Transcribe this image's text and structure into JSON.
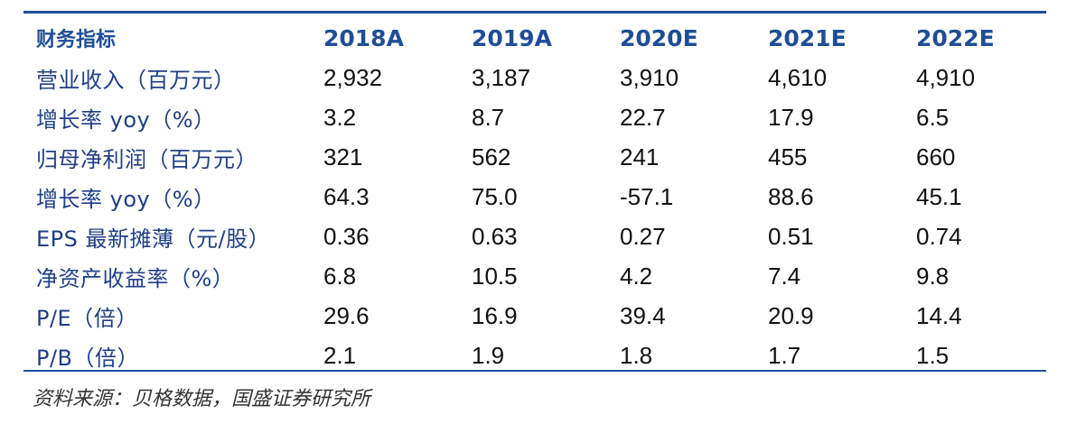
{
  "table": {
    "header": [
      "财务指标",
      "2018A",
      "2019A",
      "2020E",
      "2021E",
      "2022E"
    ],
    "rows": [
      {
        "label": "营业收入（百万元）",
        "values": [
          "2,932",
          "3,187",
          "3,910",
          "4,610",
          "4,910"
        ]
      },
      {
        "label": "增长率 yoy（%）",
        "values": [
          "3.2",
          "8.7",
          "22.7",
          "17.9",
          "6.5"
        ]
      },
      {
        "label": "归母净利润（百万元）",
        "values": [
          "321",
          "562",
          "241",
          "455",
          "660"
        ]
      },
      {
        "label": "增长率 yoy（%）",
        "values": [
          "64.3",
          "75.0",
          "-57.1",
          "88.6",
          "45.1"
        ]
      },
      {
        "label": "EPS 最新摊薄（元/股）",
        "values": [
          "0.36",
          "0.63",
          "0.27",
          "0.51",
          "0.74"
        ]
      },
      {
        "label": "净资产收益率（%）",
        "values": [
          "6.8",
          "10.5",
          "4.2",
          "7.4",
          "9.8"
        ]
      },
      {
        "label": "P/E（倍）",
        "values": [
          "29.6",
          "16.9",
          "39.4",
          "20.9",
          "14.4"
        ]
      },
      {
        "label": "P/B（倍）",
        "values": [
          "2.1",
          "1.9",
          "1.8",
          "1.7",
          "1.5"
        ]
      }
    ]
  },
  "source": "资料来源：贝格数据，国盛证券研究所",
  "colors": {
    "rule": "#1f4e96",
    "header_text": "#1f4e96",
    "label_text": "#1f3f86",
    "value_text": "#111111"
  }
}
